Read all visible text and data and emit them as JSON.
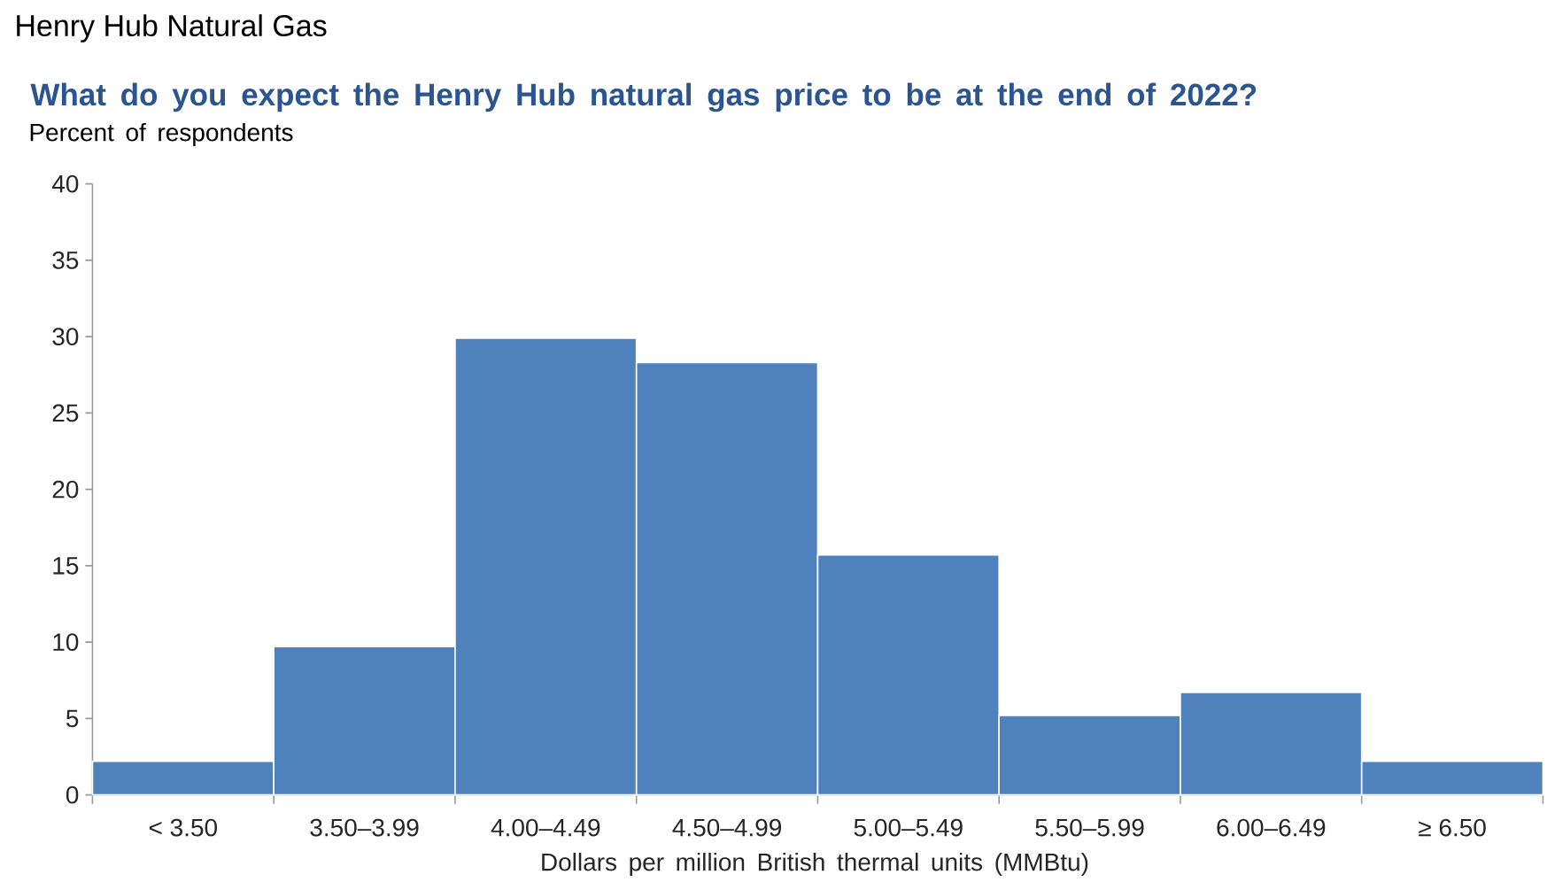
{
  "chart_data": {
    "type": "bar",
    "title": "Henry Hub Natural Gas",
    "subtitle": "What do you expect the Henry Hub natural gas price to be at the end of 2022?",
    "ylabel": "Percent of respondents",
    "xlabel": "Dollars per million British thermal units (MMBtu)",
    "categories": [
      "< 3.50",
      "3.50–3.99",
      "4.00–4.49",
      "4.50–4.99",
      "5.00–5.49",
      "5.50–5.99",
      "6.00–6.49",
      "≥ 6.50"
    ],
    "values": [
      2.2,
      9.7,
      29.9,
      28.3,
      15.7,
      5.2,
      6.7,
      2.2
    ],
    "color": "#4f81bd",
    "ylim": [
      0,
      40
    ],
    "yticks": [
      0,
      5,
      10,
      15,
      20,
      25,
      30,
      35,
      40
    ]
  }
}
